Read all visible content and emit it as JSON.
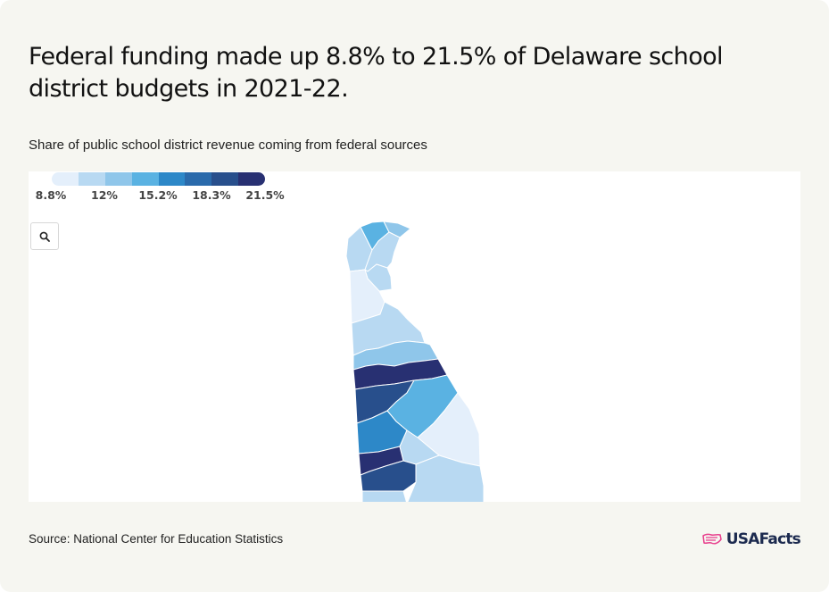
{
  "title": "Federal funding made up 8.8% to 21.5% of Delaware school district budgets in 2021-22.",
  "subtitle": "Share of public school district revenue coming from federal sources",
  "source": "Source: National Center for Education Statistics",
  "brand": "USAFacts",
  "legend": {
    "colors": [
      "#e4effb",
      "#b8d9f2",
      "#8fc6ea",
      "#5ab2e2",
      "#2d88c8",
      "#2a6aab",
      "#284f8c",
      "#283072"
    ],
    "labels": [
      "8.8%",
      "12%",
      "15.2%",
      "18.3%",
      "21.5%"
    ]
  },
  "zoom_icon": "search-icon",
  "colors": {
    "background": "#f6f6f1",
    "brand_pink": "#e83e8c",
    "brand_navy": "#1c2a4f"
  }
}
